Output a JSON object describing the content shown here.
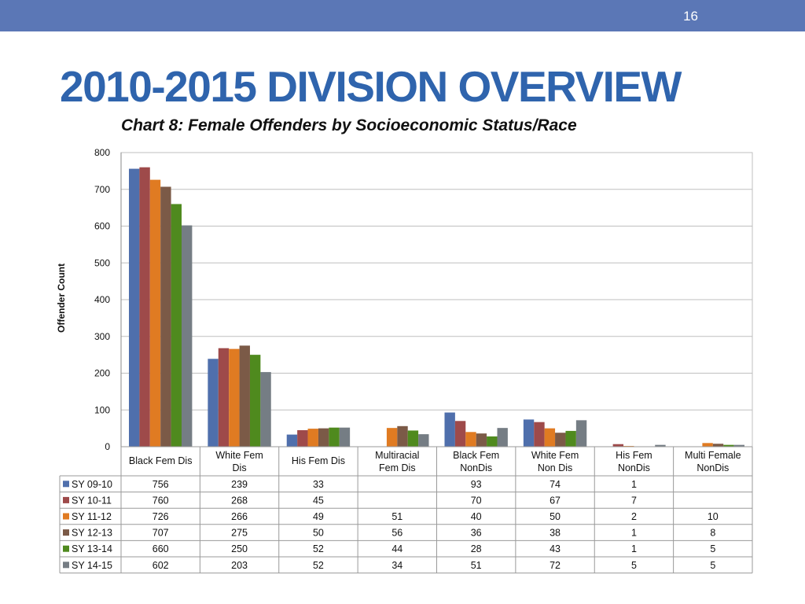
{
  "header": {
    "page_number": "16"
  },
  "title": "2010-2015 DIVISION OVERVIEW",
  "colors": {
    "header_bar": "#5b77b6",
    "title": "#2f64ad",
    "series": [
      "#4f6fac",
      "#9e4a4a",
      "#e07b22",
      "#7b5a47",
      "#4f8a1e",
      "#757d84"
    ]
  },
  "chart_data": {
    "type": "bar",
    "title": "Chart 8: Female  Offenders by  Socioeconomic Status/Race",
    "ylabel": "Offender Count",
    "xlabel": "",
    "ylim": [
      0,
      800
    ],
    "yticks": [
      "0",
      "100",
      "200",
      "300",
      "400",
      "500",
      "600",
      "700",
      "800"
    ],
    "grid": true,
    "legend": "data-table-left",
    "categories": [
      [
        "Black Fem Dis"
      ],
      [
        "White Fem",
        "Dis"
      ],
      [
        "His Fem Dis"
      ],
      [
        "Multiracial",
        "Fem Dis"
      ],
      [
        "Black Fem",
        "NonDis"
      ],
      [
        "White Fem",
        "Non Dis"
      ],
      [
        "His Fem",
        "NonDis"
      ],
      [
        "Multi Female",
        "NonDis"
      ]
    ],
    "series": [
      {
        "name": "SY 09-10",
        "values": [
          756,
          239,
          33,
          null,
          93,
          74,
          1,
          null
        ]
      },
      {
        "name": "SY 10-11",
        "values": [
          760,
          268,
          45,
          null,
          70,
          67,
          7,
          null
        ]
      },
      {
        "name": "SY 11-12",
        "values": [
          726,
          266,
          49,
          51,
          40,
          50,
          2,
          10
        ]
      },
      {
        "name": "SY 12-13",
        "values": [
          707,
          275,
          50,
          56,
          36,
          38,
          1,
          8
        ]
      },
      {
        "name": "SY 13-14",
        "values": [
          660,
          250,
          52,
          44,
          28,
          43,
          1,
          5
        ]
      },
      {
        "name": "SY 14-15",
        "values": [
          602,
          203,
          52,
          34,
          51,
          72,
          5,
          5
        ]
      }
    ]
  }
}
